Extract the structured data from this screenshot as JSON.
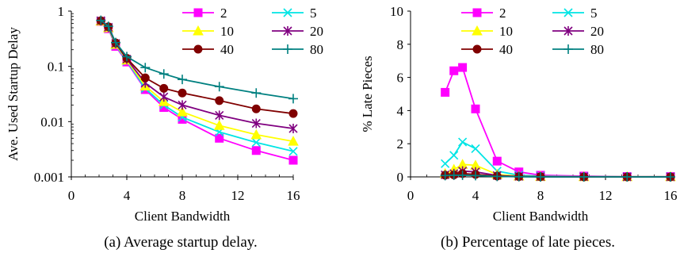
{
  "chart_data": [
    {
      "type": "line",
      "x_scale": "linear",
      "y_scale": "log",
      "xlabel": "Client Bandwidth",
      "ylabel": "Ave. Used Startup Delay",
      "caption": "(a) Average startup delay.",
      "xlim": [
        0,
        16
      ],
      "ylim": [
        0.001,
        1
      ],
      "xticks": [
        "0",
        "4",
        "8",
        "12",
        "16"
      ],
      "yticks": [
        "0.001",
        "0.01",
        "0.1",
        "1"
      ],
      "grid": false,
      "legend_position": "top-right",
      "series": [
        {
          "name": "2",
          "color": "#ff00ff",
          "marker": "square",
          "x": [
            2.13,
            2.67,
            3.2,
            4.0,
            5.33,
            6.67,
            8.0,
            10.67,
            13.33,
            16.0
          ],
          "y": [
            0.65,
            0.48,
            0.23,
            0.12,
            0.038,
            0.018,
            0.011,
            0.005,
            0.003,
            0.002
          ]
        },
        {
          "name": "5",
          "color": "#00e5e5",
          "marker": "x",
          "x": [
            2.13,
            2.67,
            3.2,
            4.0,
            5.33,
            6.67,
            8.0,
            10.67,
            13.33,
            16.0
          ],
          "y": [
            0.66,
            0.49,
            0.24,
            0.125,
            0.04,
            0.02,
            0.012,
            0.0065,
            0.0042,
            0.0029
          ]
        },
        {
          "name": "10",
          "color": "#ffff00",
          "marker": "triangle",
          "x": [
            2.13,
            2.67,
            3.2,
            4.0,
            5.33,
            6.67,
            8.0,
            10.67,
            13.33,
            16.0
          ],
          "y": [
            0.66,
            0.5,
            0.25,
            0.13,
            0.044,
            0.023,
            0.015,
            0.0085,
            0.0058,
            0.0044
          ]
        },
        {
          "name": "20",
          "color": "#800080",
          "marker": "star",
          "x": [
            2.13,
            2.67,
            3.2,
            4.0,
            5.33,
            6.67,
            8.0,
            10.67,
            13.33,
            16.0
          ],
          "y": [
            0.67,
            0.51,
            0.26,
            0.135,
            0.05,
            0.028,
            0.02,
            0.013,
            0.0093,
            0.0075
          ]
        },
        {
          "name": "40",
          "color": "#800000",
          "marker": "circle",
          "x": [
            2.13,
            2.67,
            3.2,
            4.0,
            5.33,
            6.67,
            8.0,
            10.67,
            13.33,
            16.0
          ],
          "y": [
            0.67,
            0.52,
            0.265,
            0.14,
            0.062,
            0.04,
            0.033,
            0.024,
            0.017,
            0.014
          ]
        },
        {
          "name": "80",
          "color": "#008080",
          "marker": "plus",
          "x": [
            2.13,
            2.67,
            3.2,
            4.0,
            5.33,
            6.67,
            8.0,
            10.67,
            13.33,
            16.0
          ],
          "y": [
            0.68,
            0.53,
            0.27,
            0.15,
            0.095,
            0.073,
            0.058,
            0.043,
            0.033,
            0.026
          ]
        }
      ]
    },
    {
      "type": "line",
      "x_scale": "linear",
      "y_scale": "linear",
      "xlabel": "Client Bandwidth",
      "ylabel": "% Late Pieces",
      "caption": "(b) Percentage of late pieces.",
      "xlim": [
        0,
        16
      ],
      "ylim": [
        0,
        10
      ],
      "xticks": [
        "0",
        "4",
        "8",
        "12",
        "16"
      ],
      "yticks": [
        "0",
        "2",
        "4",
        "6",
        "8",
        "10"
      ],
      "grid": false,
      "legend_position": "top",
      "series": [
        {
          "name": "2",
          "color": "#ff00ff",
          "marker": "square",
          "x": [
            2.13,
            2.67,
            3.2,
            4.0,
            5.33,
            6.67,
            8.0,
            10.67,
            13.33,
            16.0
          ],
          "y": [
            5.1,
            6.4,
            6.6,
            4.1,
            0.95,
            0.3,
            0.1,
            0.05,
            0.02,
            0.02
          ]
        },
        {
          "name": "5",
          "color": "#00e5e5",
          "marker": "x",
          "x": [
            2.13,
            2.67,
            3.2,
            4.0,
            5.33,
            6.67,
            8.0,
            10.67,
            13.33,
            16.0
          ],
          "y": [
            0.8,
            1.3,
            2.1,
            1.7,
            0.35,
            0.1,
            0.05,
            0.02,
            0.01,
            0.01
          ]
        },
        {
          "name": "10",
          "color": "#ffff00",
          "marker": "triangle",
          "x": [
            2.13,
            2.67,
            3.2,
            4.0,
            5.33,
            6.67,
            8.0,
            10.67,
            13.33,
            16.0
          ],
          "y": [
            0.2,
            0.45,
            0.75,
            0.7,
            0.15,
            0.05,
            0.02,
            0.01,
            0.01,
            0.01
          ]
        },
        {
          "name": "20",
          "color": "#800080",
          "marker": "star",
          "x": [
            2.13,
            2.67,
            3.2,
            4.0,
            5.33,
            6.67,
            8.0,
            10.67,
            13.33,
            16.0
          ],
          "y": [
            0.12,
            0.2,
            0.35,
            0.3,
            0.08,
            0.03,
            0.01,
            0.01,
            0.0,
            0.0
          ]
        },
        {
          "name": "40",
          "color": "#800000",
          "marker": "circle",
          "x": [
            2.13,
            2.67,
            3.2,
            4.0,
            5.33,
            6.67,
            8.0,
            10.67,
            13.33,
            16.0
          ],
          "y": [
            0.1,
            0.12,
            0.2,
            0.15,
            0.05,
            0.02,
            0.01,
            0.0,
            0.0,
            0.0
          ]
        },
        {
          "name": "80",
          "color": "#008080",
          "marker": "plus",
          "x": [
            2.13,
            2.67,
            3.2,
            4.0,
            5.33,
            6.67,
            8.0,
            10.67,
            13.33,
            16.0
          ],
          "y": [
            0.08,
            0.1,
            0.1,
            0.08,
            0.03,
            0.01,
            0.0,
            0.0,
            0.0,
            0.0
          ]
        }
      ]
    }
  ]
}
